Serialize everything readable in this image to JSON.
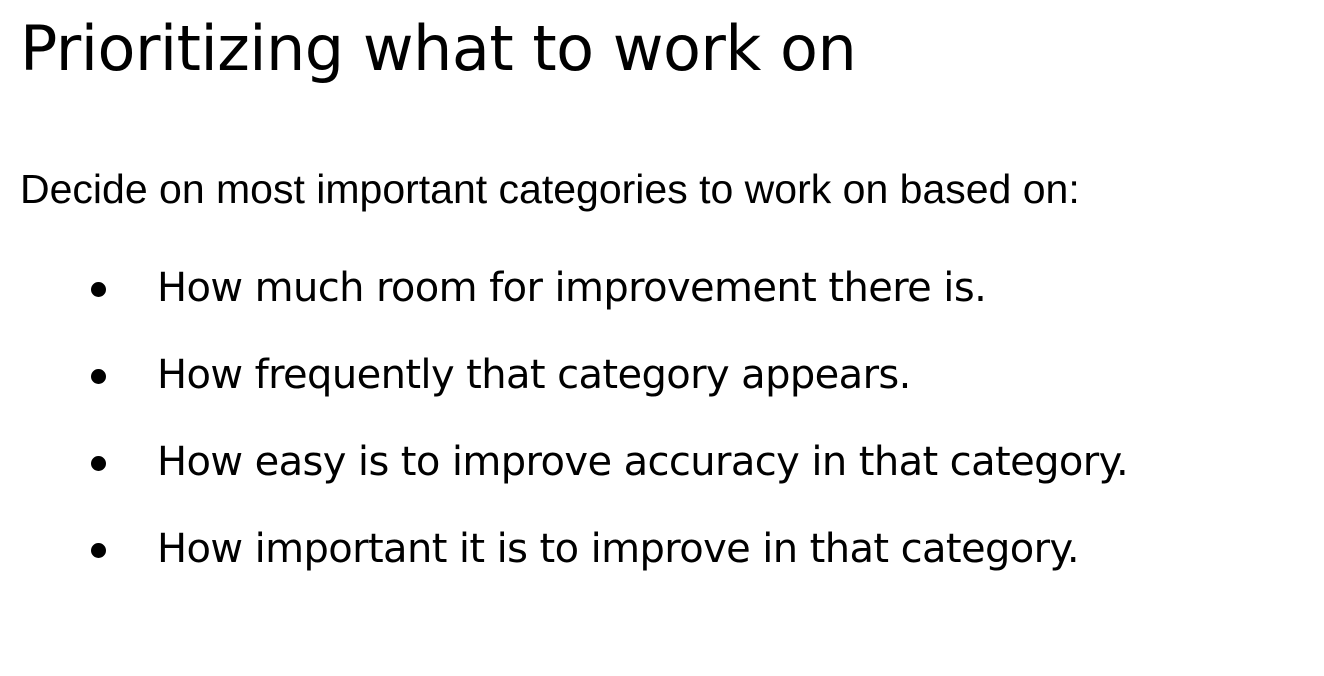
{
  "slide": {
    "title": "Prioritizing what to work on",
    "intro": "Decide on most important categories to work on based on:",
    "bullets": [
      {
        "text": "How much room for improvement there is."
      },
      {
        "text": "How frequently that category appears."
      },
      {
        "text": "How easy is to improve accuracy in that category."
      },
      {
        "text": "How important it is to improve in that category."
      }
    ]
  }
}
